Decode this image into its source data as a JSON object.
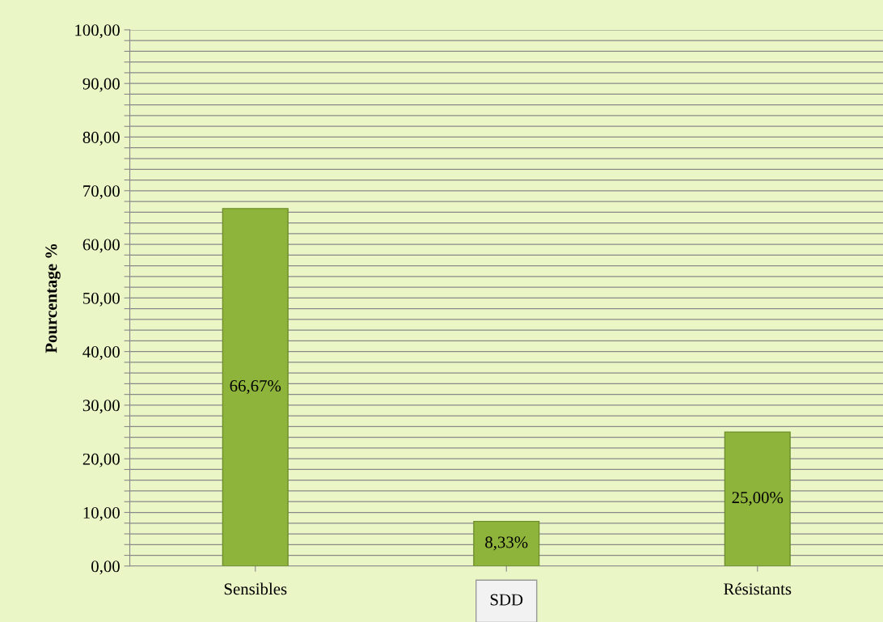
{
  "chart_data": {
    "type": "bar",
    "ylabel": "Pourcentage %",
    "categories": [
      "Sensibles",
      "SDD",
      "Résistants"
    ],
    "values": [
      66.67,
      8.33,
      25.0
    ],
    "value_labels": [
      "66,67%",
      "8,33%",
      "25,00%"
    ],
    "color": "#8fb43c",
    "ylim": [
      0,
      100
    ],
    "yticks": [
      {
        "value": 0,
        "label": "0,00"
      },
      {
        "value": 2,
        "label": null
      },
      {
        "value": 4,
        "label": null
      },
      {
        "value": 6,
        "label": null
      },
      {
        "value": 8,
        "label": null
      },
      {
        "value": 10,
        "label": "10,00"
      },
      {
        "value": 12,
        "label": null
      },
      {
        "value": 14,
        "label": null
      },
      {
        "value": 16,
        "label": null
      },
      {
        "value": 18,
        "label": null
      },
      {
        "value": 20,
        "label": "20,00"
      },
      {
        "value": 22,
        "label": null
      },
      {
        "value": 24,
        "label": null
      },
      {
        "value": 26,
        "label": null
      },
      {
        "value": 28,
        "label": null
      },
      {
        "value": 30,
        "label": "30,00"
      },
      {
        "value": 32,
        "label": null
      },
      {
        "value": 34,
        "label": null
      },
      {
        "value": 36,
        "label": null
      },
      {
        "value": 38,
        "label": null
      },
      {
        "value": 40,
        "label": "40,00"
      },
      {
        "value": 42,
        "label": null
      },
      {
        "value": 44,
        "label": null
      },
      {
        "value": 46,
        "label": null
      },
      {
        "value": 48,
        "label": null
      },
      {
        "value": 50,
        "label": "50,00"
      },
      {
        "value": 52,
        "label": null
      },
      {
        "value": 54,
        "label": null
      },
      {
        "value": 56,
        "label": null
      },
      {
        "value": 58,
        "label": null
      },
      {
        "value": 60,
        "label": "60,00"
      },
      {
        "value": 62,
        "label": null
      },
      {
        "value": 64,
        "label": null
      },
      {
        "value": 66,
        "label": null
      },
      {
        "value": 68,
        "label": null
      },
      {
        "value": 70,
        "label": "70,00"
      },
      {
        "value": 72,
        "label": null
      },
      {
        "value": 74,
        "label": null
      },
      {
        "value": 76,
        "label": null
      },
      {
        "value": 78,
        "label": null
      },
      {
        "value": 80,
        "label": "80,00"
      },
      {
        "value": 82,
        "label": null
      },
      {
        "value": 84,
        "label": null
      },
      {
        "value": 86,
        "label": null
      },
      {
        "value": 88,
        "label": null
      },
      {
        "value": 90,
        "label": "90,00"
      },
      {
        "value": 92,
        "label": null
      },
      {
        "value": 94,
        "label": null
      },
      {
        "value": 96,
        "label": null
      },
      {
        "value": 98,
        "label": null
      },
      {
        "value": 100,
        "label": "100,00"
      }
    ],
    "grid": "y"
  }
}
